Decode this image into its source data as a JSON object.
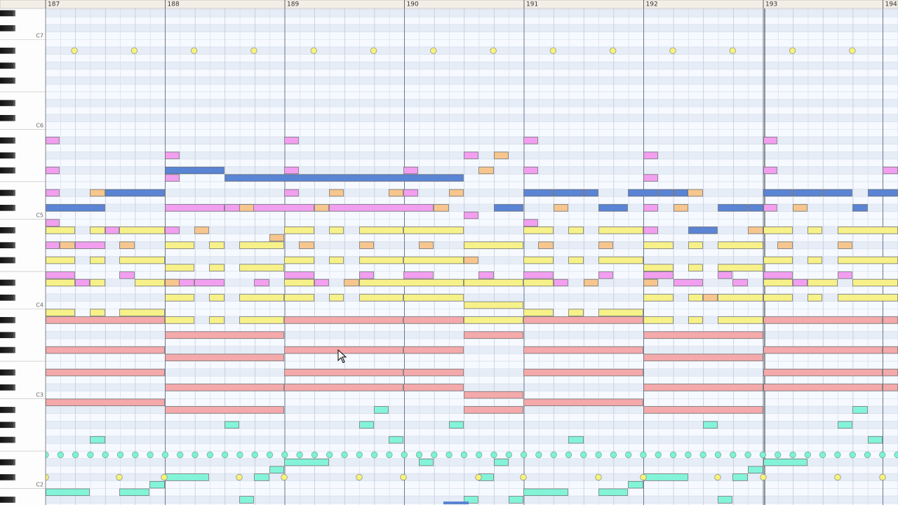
{
  "ruler": {
    "measures": [
      "187",
      "188",
      "189",
      "190",
      "191",
      "192",
      "193",
      "194"
    ]
  },
  "keyboard": {
    "octave_labels": [
      "C7",
      "C6",
      "C5",
      "C4",
      "C3",
      "C2"
    ]
  }
}
